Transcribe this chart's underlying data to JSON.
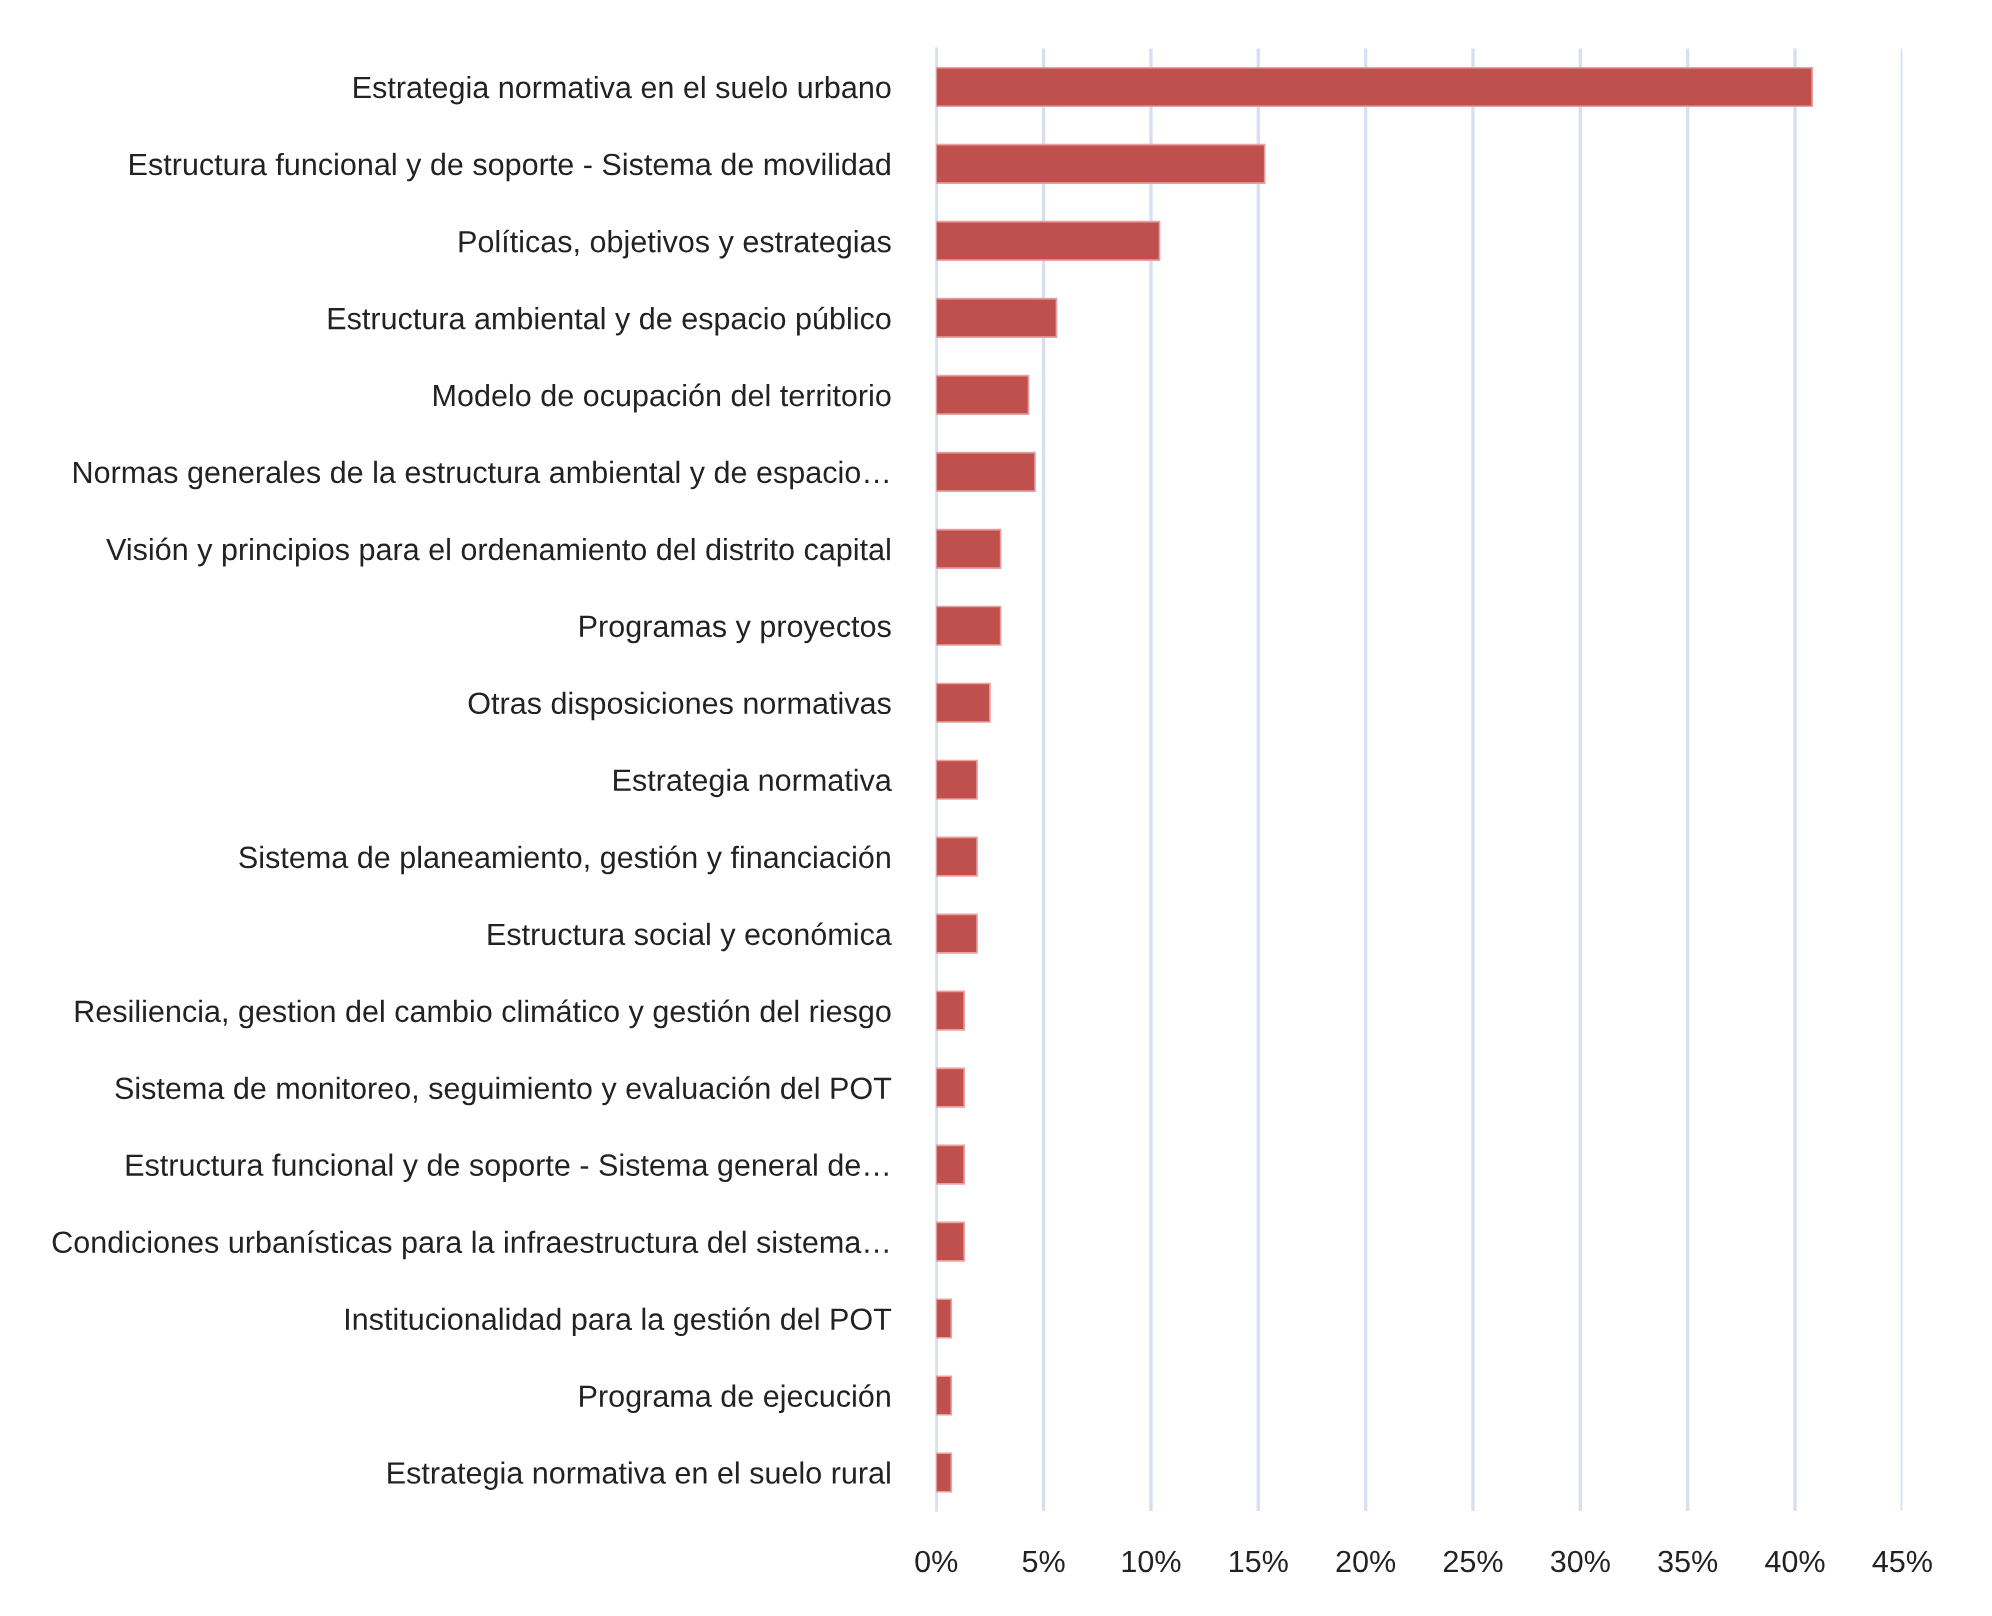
{
  "chart_data": {
    "type": "bar",
    "orientation": "horizontal",
    "categories": [
      "Estrategia normativa en el suelo urbano",
      "Estructura funcional y de soporte - Sistema de movilidad",
      "Políticas, objetivos y estrategias",
      "Estructura ambiental y de espacio público",
      "Modelo de ocupación del territorio",
      "Normas generales de la estructura ambiental y de espacio…",
      "Visión y principios para el ordenamiento del distrito capital",
      "Programas y proyectos",
      "Otras disposiciones normativas",
      "Estrategia normativa",
      "Sistema de planeamiento, gestión y financiación",
      "Estructura social y económica",
      "Resiliencia, gestion del cambio climático y gestión del riesgo",
      "Sistema de monitoreo, seguimiento y evaluación del POT",
      "Estructura funcional y de soporte - Sistema general de…",
      "Condiciones urbanísticas para la infraestructura del sistema…",
      "Institucionalidad para la gestión del POT",
      "Programa de ejecución",
      "Estrategia normativa en el suelo rural"
    ],
    "values": [
      40.8,
      15.3,
      10.4,
      5.6,
      4.3,
      4.6,
      3.0,
      3.0,
      2.5,
      1.9,
      1.9,
      1.9,
      1.3,
      1.3,
      1.3,
      1.3,
      0.7,
      0.7,
      0.7
    ],
    "color": "#c0504d",
    "xlim": [
      0,
      45
    ],
    "xticks": [
      {
        "value": 0,
        "label": "0%"
      },
      {
        "value": 5,
        "label": "5%"
      },
      {
        "value": 10,
        "label": "10%"
      },
      {
        "value": 15,
        "label": "15%"
      },
      {
        "value": 20,
        "label": "20%"
      },
      {
        "value": 25,
        "label": "25%"
      },
      {
        "value": 30,
        "label": "30%"
      },
      {
        "value": 35,
        "label": "35%"
      },
      {
        "value": 40,
        "label": "40%"
      },
      {
        "value": 45,
        "label": "45%"
      }
    ],
    "grid": "x",
    "legend": false
  }
}
